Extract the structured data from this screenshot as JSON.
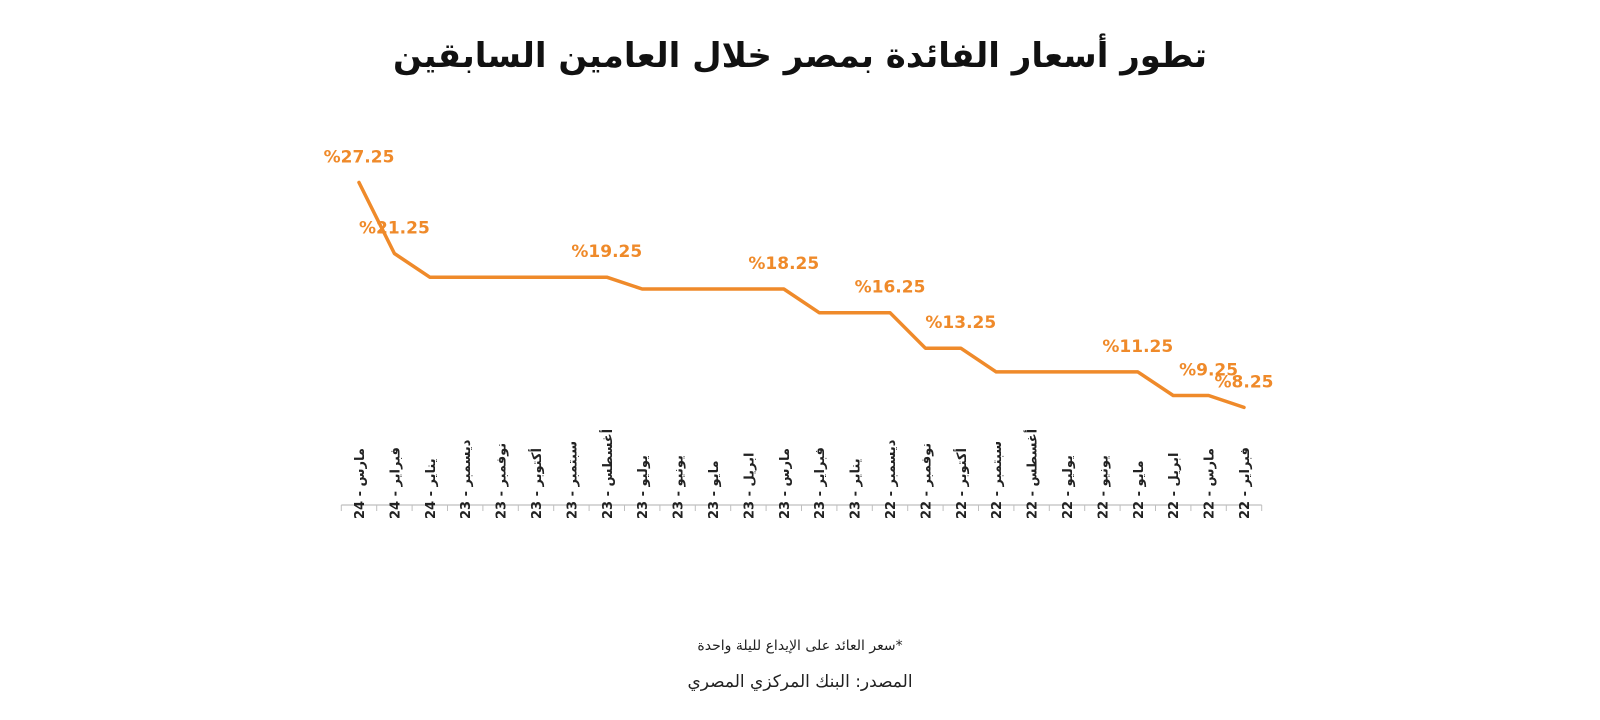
{
  "title": "تطور أسعار الفائدة بمصر خلال العامين السابقين",
  "note": "*سعر العائد على الإيداع لليلة واحدة",
  "source": "المصدر: البنك المركزي المصري",
  "colors": {
    "line": "#ef8a2a",
    "label": "#ef8a2a",
    "axis": "#bfbfbf",
    "tick_text": "#222222"
  },
  "chart_data": {
    "type": "line",
    "title": "تطور أسعار الفائدة بمصر خلال العامين السابقين",
    "xlabel": "",
    "ylabel": "",
    "grid": false,
    "legend": "none",
    "x_direction": "right-to-left",
    "categories": [
      "فبراير - 22",
      "مارس - 22",
      "ابريل - 22",
      "مايو - 22",
      "يونيو - 22",
      "يوليو - 22",
      "أغسطس - 22",
      "سبتمبر - 22",
      "أكتوبر - 22",
      "نوفمبر - 22",
      "ديسمبر - 22",
      "يناير - 23",
      "فبراير - 23",
      "مارس - 23",
      "ابريل - 23",
      "مايو - 23",
      "يونيو - 23",
      "يوليو - 23",
      "أغسطس - 23",
      "سبتمبر - 23",
      "أكتوبر - 23",
      "نوفمبر - 23",
      "ديسمبر - 23",
      "يناير - 24",
      "فبراير - 24",
      "مارس - 24"
    ],
    "x_labels_display": [
      "فبراير - 22",
      "مارس - 22",
      "ابريل - 22",
      "مايو - 22",
      "يونيو - 22",
      "يوليو - 22",
      "أغسطس - 22",
      "سبتمبر - 22",
      "أكتوبر - 22",
      "نوفمبر - 22",
      "ديسمبر - 22",
      "يناير - 23",
      "فبراير - 23",
      "مارس - 23",
      "ابريل - 23",
      "مايو - 23",
      "يونيو - 23",
      "يوليو - 23",
      "أغسطس - 23",
      "سبتمبر - 23",
      "أكتوبر - 23",
      "نوفمبر - 23",
      "ديسمبر - 23",
      "يناير - 24",
      "فبراير - 24",
      "مارس - 24"
    ],
    "values": [
      8.25,
      9.25,
      9.25,
      11.25,
      11.25,
      11.25,
      11.25,
      11.25,
      13.25,
      13.25,
      16.25,
      16.25,
      16.25,
      18.25,
      18.25,
      18.25,
      18.25,
      18.25,
      19.25,
      19.25,
      19.25,
      19.25,
      19.25,
      19.25,
      21.25,
      27.25
    ],
    "ylim": [
      0,
      30
    ],
    "data_labels": [
      {
        "index": 0,
        "text": "%8.25"
      },
      {
        "index": 1,
        "text": "%9.25"
      },
      {
        "index": 3,
        "text": "%11.25"
      },
      {
        "index": 8,
        "text": "%13.25"
      },
      {
        "index": 10,
        "text": "%16.25"
      },
      {
        "index": 13,
        "text": "%18.25"
      },
      {
        "index": 18,
        "text": "%19.25"
      },
      {
        "index": 24,
        "text": "%21.25"
      },
      {
        "index": 25,
        "text": "%27.25"
      }
    ]
  }
}
